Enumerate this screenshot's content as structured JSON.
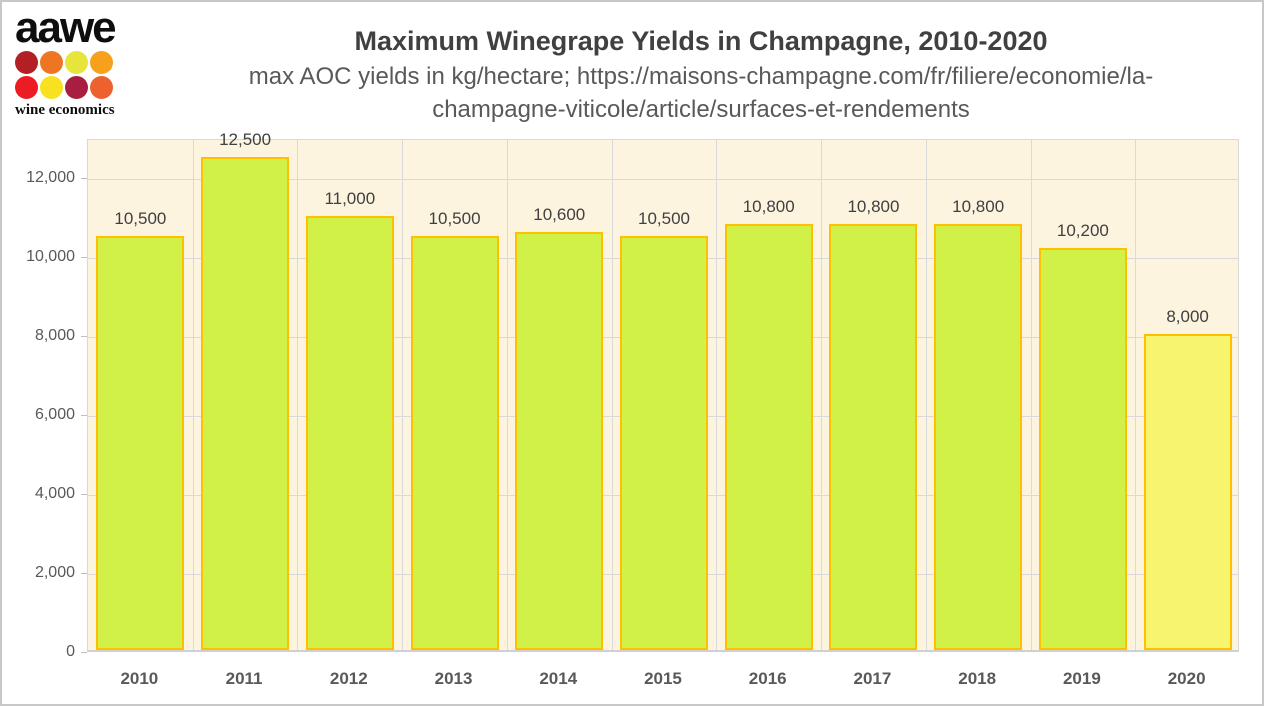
{
  "logo": {
    "brand": "aawe",
    "tagline": "wine economics",
    "dot_colors": [
      "#b22025",
      "#ee7623",
      "#e7e43c",
      "#f6a01b",
      "#ec1c24",
      "#f8e11e",
      "#a81e41",
      "#ed612f"
    ]
  },
  "header": {
    "title": "Maximum Winegrape Yields in Champagne, 2010-2020",
    "subtitle_line1": "max AOC yields in kg/hectare; https://maisons-champagne.com/fr/filiere/economie/la-",
    "subtitle_line2": "champagne-viticole/article/surfaces-et-rendements"
  },
  "chart_data": {
    "type": "bar",
    "title": "Maximum Winegrape Yields in Champagne, 2010-2020",
    "subtitle": "max AOC yields in kg/hectare; https://maisons-champagne.com/fr/filiere/economie/la-champagne-viticole/article/surfaces-et-rendements",
    "categories": [
      "2010",
      "2011",
      "2012",
      "2013",
      "2014",
      "2015",
      "2016",
      "2017",
      "2018",
      "2019",
      "2020"
    ],
    "values": [
      10500,
      12500,
      11000,
      10500,
      10600,
      10500,
      10800,
      10800,
      10800,
      10200,
      8000
    ],
    "data_labels": [
      "10,500",
      "12,500",
      "11,000",
      "10,500",
      "10,600",
      "10,500",
      "10,800",
      "10,800",
      "10,800",
      "10,200",
      "8,000"
    ],
    "xlabel": "",
    "ylabel": "",
    "ylim": [
      0,
      13000
    ],
    "ytick_values": [
      0,
      2000,
      4000,
      6000,
      8000,
      10000,
      12000
    ],
    "ytick_labels": [
      "0",
      "2,000",
      "4,000",
      "6,000",
      "8,000",
      "10,000",
      "12,000"
    ],
    "grid": true,
    "legend": "none",
    "colors": {
      "bar_fill": "#d1f149",
      "bar_fill_last": "#f7f56d",
      "bar_border": "#ffc000",
      "plot_background": "#fdf4e0",
      "gridline": "#d9d9d9",
      "data_label_text": "#404040",
      "axis_text": "#595959"
    }
  }
}
